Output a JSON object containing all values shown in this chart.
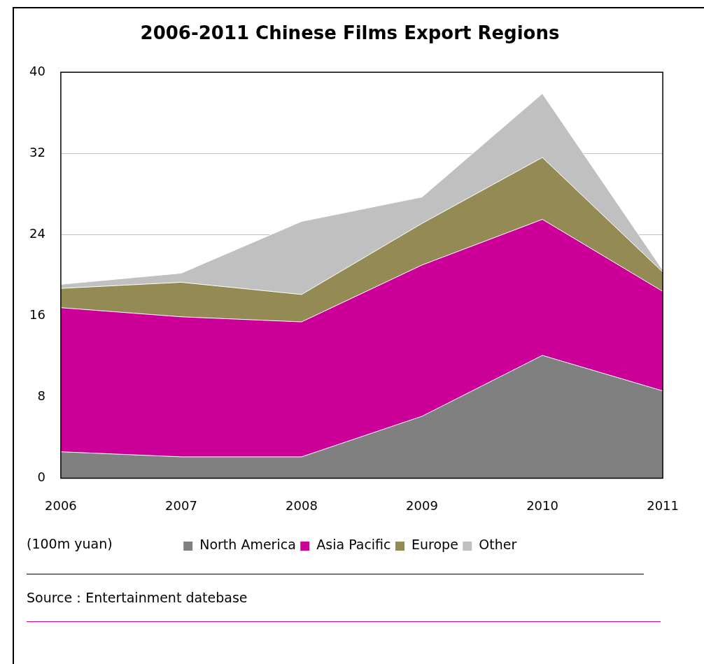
{
  "chart_data": {
    "type": "area",
    "stacked": true,
    "title": "2006-2011 Chinese Films Export Regions",
    "categories": [
      "2006",
      "2007",
      "2008",
      "2009",
      "2010",
      "2011"
    ],
    "series": [
      {
        "name": "North America",
        "color": "#808080",
        "values": [
          2.6,
          2.1,
          2.1,
          6.1,
          12.1,
          8.6
        ]
      },
      {
        "name": "Asia Pacific",
        "color": "#cc0099",
        "values": [
          14.2,
          13.8,
          13.3,
          14.9,
          13.4,
          9.8
        ]
      },
      {
        "name": "Europe",
        "color": "#948a54",
        "values": [
          1.9,
          3.4,
          2.7,
          4.1,
          6.1,
          1.9
        ]
      },
      {
        "name": "Other",
        "color": "#c0c0c0",
        "values": [
          0.4,
          0.9,
          7.2,
          2.6,
          6.3,
          0.2
        ]
      }
    ],
    "ylim": [
      0,
      40
    ],
    "yticks": [
      0,
      8,
      16,
      24,
      32,
      40
    ],
    "grid": "y",
    "legend": "bottom",
    "annotations": [
      "(100m yuan)",
      "Source：Entertainment datebase"
    ]
  }
}
